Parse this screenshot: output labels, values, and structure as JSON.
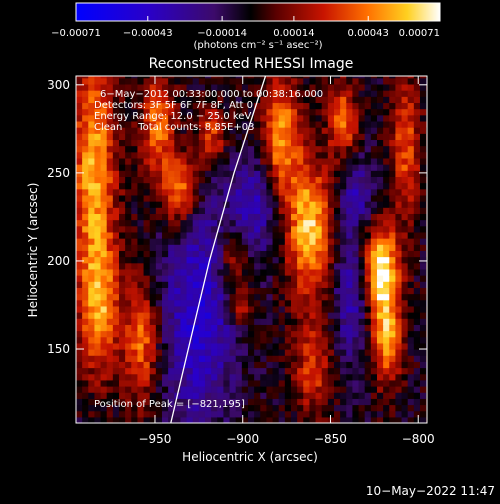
{
  "chart_data": {
    "type": "heatmap",
    "title": "Reconstructed RHESSI Image",
    "xlabel": "Heliocentric X (arcsec)",
    "ylabel": "Heliocentric Y (arcsec)",
    "xlim": [
      -995,
      -795
    ],
    "ylim": [
      108,
      305
    ],
    "xticks": [
      -950,
      -900,
      -850,
      -800
    ],
    "xtick_labels": [
      "−950",
      "−900",
      "−850",
      "−800"
    ],
    "yticks": [
      150,
      200,
      250,
      300
    ],
    "ytick_labels": [
      "150",
      "200",
      "250",
      "300"
    ],
    "colorbar": {
      "min": -0.00071,
      "max": 0.00071,
      "ticks": [
        -0.00071,
        -0.00043,
        -0.00014,
        0.00014,
        0.00043,
        0.00071
      ],
      "tick_labels": [
        "−0.00071",
        "−0.00043",
        "−0.00014",
        "0.00014",
        "0.00043",
        "0.00071"
      ],
      "unit_label": "(photons cm⁻² s⁻¹ asec⁻²)"
    },
    "annotations": [
      "6−May−2012 00:33:00.000 to 00:38:16.000",
      "Detectors: 3F 5F 6F 7F 8F, Att 0",
      "Energy Range: 12.0 − 25.0 keV",
      "Clean     Total counts: 8.85E+03"
    ],
    "peak_label": "Position of Peak = [−821,195]",
    "peak": [
      -821,
      195
    ],
    "limb_curve": [
      [
        -941,
        108
      ],
      [
        -931,
        150
      ],
      [
        -919,
        200
      ],
      [
        -905,
        250
      ],
      [
        -887,
        305
      ]
    ],
    "blobs": [
      {
        "x": -821,
        "y": 195,
        "sx": 7,
        "sy": 18,
        "amp": 1.0
      },
      {
        "x": -818,
        "y": 155,
        "sx": 6,
        "sy": 18,
        "amp": 0.7
      },
      {
        "x": -862,
        "y": 218,
        "sx": 9,
        "sy": 26,
        "amp": 0.85
      },
      {
        "x": -878,
        "y": 270,
        "sx": 8,
        "sy": 25,
        "amp": 0.7
      },
      {
        "x": -843,
        "y": 280,
        "sx": 6,
        "sy": 15,
        "amp": 0.6
      },
      {
        "x": -807,
        "y": 265,
        "sx": 6,
        "sy": 28,
        "amp": 0.55
      },
      {
        "x": -985,
        "y": 255,
        "sx": 9,
        "sy": 42,
        "amp": 0.75
      },
      {
        "x": -982,
        "y": 175,
        "sx": 8,
        "sy": 28,
        "amp": 0.7
      },
      {
        "x": -948,
        "y": 278,
        "sx": 7,
        "sy": 22,
        "amp": 0.6
      },
      {
        "x": -936,
        "y": 240,
        "sx": 7,
        "sy": 14,
        "amp": 0.7
      },
      {
        "x": -958,
        "y": 155,
        "sx": 7,
        "sy": 25,
        "amp": 0.6
      },
      {
        "x": -918,
        "y": 272,
        "sx": 6,
        "sy": 12,
        "amp": 0.5
      },
      {
        "x": -905,
        "y": 200,
        "sx": 6,
        "sy": 14,
        "amp": 0.45
      },
      {
        "x": -860,
        "y": 140,
        "sx": 8,
        "sy": 20,
        "amp": 0.45
      },
      {
        "x": -900,
        "y": 175,
        "sx": 4,
        "sy": 8,
        "amp": 0.4
      },
      {
        "x": -925,
        "y": 170,
        "sx": 14,
        "sy": 45,
        "amp": -0.55
      },
      {
        "x": -893,
        "y": 232,
        "sx": 10,
        "sy": 20,
        "amp": -0.45
      },
      {
        "x": -838,
        "y": 180,
        "sx": 8,
        "sy": 28,
        "amp": -0.4
      },
      {
        "x": -835,
        "y": 240,
        "sx": 7,
        "sy": 14,
        "amp": -0.35
      }
    ]
  },
  "footer": {
    "timestamp": "10−May−2022 11:47"
  }
}
